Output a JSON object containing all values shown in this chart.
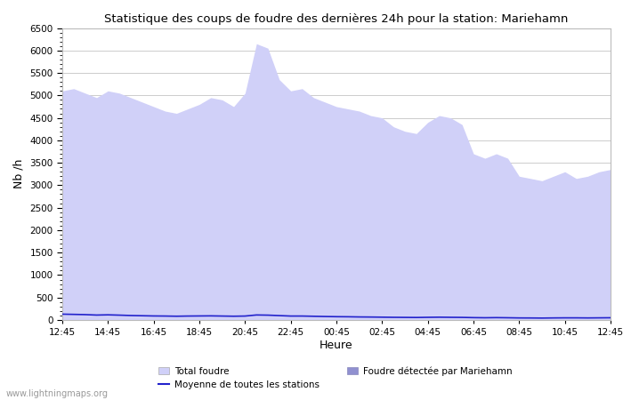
{
  "title": "Statistique des coups de foudre des dernières 24h pour la station: Mariehamn",
  "ylabel": "Nb /h",
  "xlabel": "Heure",
  "watermark": "www.lightningmaps.org",
  "ylim": [
    0,
    6500
  ],
  "xtick_labels": [
    "12:45",
    "14:45",
    "16:45",
    "18:45",
    "20:45",
    "22:45",
    "00:45",
    "02:45",
    "04:45",
    "06:45",
    "08:45",
    "10:45",
    "12:45"
  ],
  "ytick_values": [
    0,
    500,
    1000,
    1500,
    2000,
    2500,
    3000,
    3500,
    4000,
    4500,
    5000,
    5500,
    6000,
    6500
  ],
  "bg_color": "#ffffff",
  "plot_bg_color": "#ffffff",
  "fill_total_color": "#d0d0f8",
  "fill_station_color": "#9090d0",
  "line_mean_color": "#2222cc",
  "total_foudre": [
    5100,
    5150,
    5050,
    4950,
    5100,
    5050,
    4950,
    4850,
    4750,
    4650,
    4600,
    4700,
    4800,
    4950,
    4900,
    4750,
    5050,
    6150,
    6050,
    5350,
    5100,
    5150,
    4950,
    4850,
    4750,
    4700,
    4650,
    4550,
    4500,
    4300,
    4200,
    4150,
    4400,
    4550,
    4500,
    4350,
    3700,
    3600,
    3700,
    3600,
    3200,
    3150,
    3100,
    3200,
    3300,
    3150,
    3200,
    3300,
    3350
  ],
  "station_foudre": [
    0,
    0,
    0,
    0,
    0,
    0,
    0,
    0,
    0,
    0,
    0,
    0,
    0,
    0,
    0,
    0,
    0,
    0,
    0,
    0,
    0,
    0,
    0,
    0,
    0,
    0,
    0,
    0,
    0,
    0,
    0,
    0,
    0,
    0,
    0,
    0,
    0,
    0,
    0,
    0,
    0,
    0,
    0,
    0,
    0,
    0,
    0,
    0,
    0
  ],
  "mean_foudre": [
    130,
    125,
    120,
    110,
    115,
    108,
    100,
    95,
    90,
    88,
    84,
    88,
    90,
    92,
    88,
    84,
    88,
    112,
    108,
    98,
    88,
    88,
    83,
    78,
    74,
    72,
    68,
    66,
    63,
    60,
    58,
    56,
    60,
    63,
    60,
    58,
    53,
    50,
    53,
    50,
    46,
    45,
    43,
    46,
    48,
    48,
    46,
    48,
    50
  ],
  "legend_total": "Total foudre",
  "legend_mean": "Moyenne de toutes les stations",
  "legend_station": "Foudre détectée par Mariehamn"
}
